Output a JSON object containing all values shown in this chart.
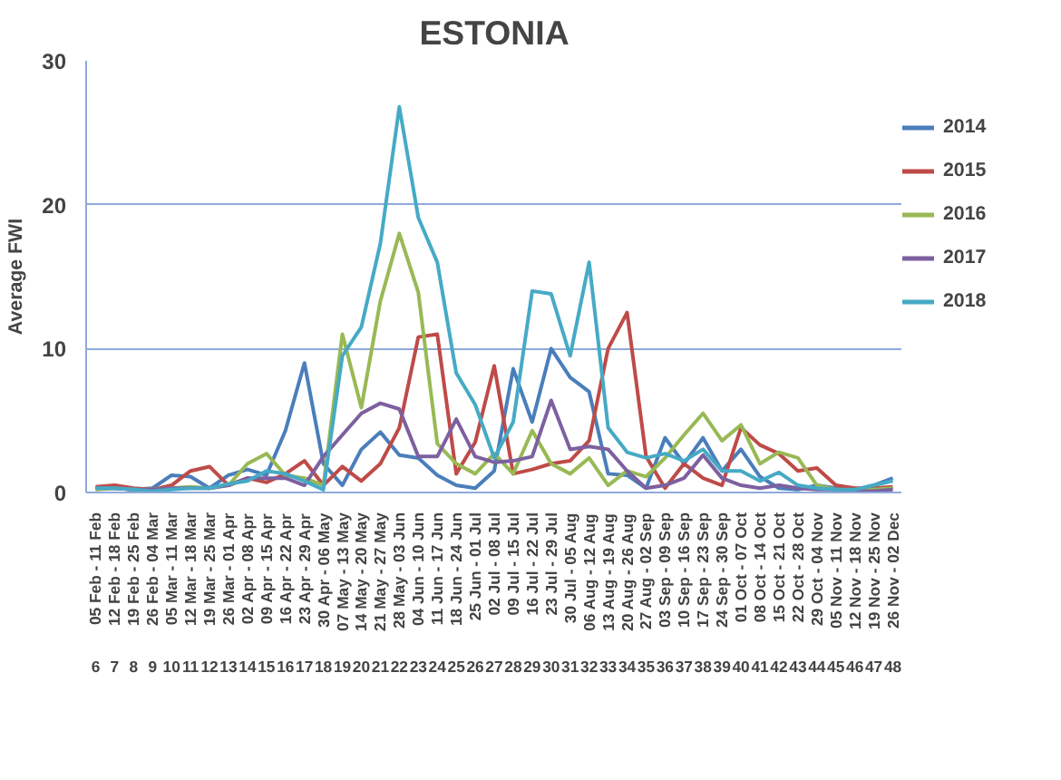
{
  "chart_data": {
    "type": "line",
    "title": "ESTONIA",
    "ylabel": "Average FWI",
    "categories": [
      "05 Feb - 11 Feb",
      "12 Feb - 18 Feb",
      "19 Feb - 25 Feb",
      "26 Feb - 04 Mar",
      "05 Mar - 11 Mar",
      "12 Mar - 18 Mar",
      "19 Mar - 25 Mar",
      "26 Mar - 01 Apr",
      "02 Apr - 08 Apr",
      "09 Apr - 15 Apr",
      "16 Apr - 22 Apr",
      "23 Apr - 29 Apr",
      "30 Apr - 06 May",
      "07 May - 13 May",
      "14 May - 20 May",
      "21 May - 27 May",
      "28 May - 03 Jun",
      "04 Jun - 10 Jun",
      "11 Jun - 17 Jun",
      "18 Jun - 24 Jun",
      "25 Jun - 01 Jul",
      "02 Jul - 08 Jul",
      "09 Jul - 15 Jul",
      "16 Jul - 22 Jul",
      "23 Jul - 29 Jul",
      "30 Jul - 05 Aug",
      "06 Aug - 12 Aug",
      "13 Aug - 19 Aug",
      "20 Aug - 26 Aug",
      "27 Aug - 02 Sep",
      "03 Sep - 09 Sep",
      "10 Sep - 16 Sep",
      "17 Sep - 23 Sep",
      "24 Sep - 30 Sep",
      "01 Oct - 07 Oct",
      "08 Oct - 14 Oct",
      "15 Oct - 21 Oct",
      "22 Oct - 28 Oct",
      "29 Oct - 04 Nov",
      "05 Nov - 11 Nov",
      "12 Nov - 18 Nov",
      "19 Nov - 25 Nov",
      "26 Nov - 02 Dec"
    ],
    "annotations": [
      "6",
      "7",
      "8",
      "9",
      "10",
      "11",
      "12",
      "13",
      "14",
      "15",
      "16",
      "17",
      "18",
      "19",
      "20",
      "21",
      "22",
      "23",
      "24",
      "25",
      "26",
      "27",
      "28",
      "29",
      "30",
      "31",
      "32",
      "33",
      "34",
      "35",
      "36",
      "37",
      "38",
      "39",
      "40",
      "41",
      "42",
      "43",
      "44",
      "45",
      "46",
      "47",
      "48"
    ],
    "series": [
      {
        "name": "2014",
        "color": "#4a7ebb",
        "values": [
          0.3,
          0.3,
          0.2,
          0.3,
          1.2,
          1.1,
          0.3,
          1.2,
          1.6,
          1.2,
          4.3,
          9,
          2,
          0.5,
          3,
          4.2,
          2.6,
          2.4,
          1.2,
          0.5,
          0.3,
          1.5,
          8.6,
          4.9,
          10,
          8,
          7,
          1.3,
          1.2,
          0.3,
          3.8,
          2,
          3.8,
          1.5,
          3,
          1.1,
          0.3,
          0.2,
          0.5,
          0.3,
          0.2,
          0.5,
          1
        ]
      },
      {
        "name": "2015",
        "color": "#be4b48",
        "values": [
          0.4,
          0.5,
          0.3,
          0.2,
          0.5,
          1.5,
          1.8,
          0.5,
          1,
          0.7,
          1.3,
          2.2,
          0.5,
          1.8,
          0.8,
          2,
          4.5,
          10.8,
          11,
          1.3,
          3.5,
          8.8,
          1.3,
          1.6,
          2,
          2.2,
          3.6,
          10,
          12.5,
          2.5,
          0.3,
          2,
          1,
          0.5,
          4.5,
          3.3,
          2.7,
          1.5,
          1.7,
          0.5,
          0.3,
          0.3,
          0.4
        ]
      },
      {
        "name": "2016",
        "color": "#98b954",
        "values": [
          0.2,
          0.3,
          0.2,
          0.2,
          0.3,
          0.4,
          0.3,
          0.5,
          2,
          2.7,
          1.2,
          1,
          0.5,
          11,
          5.9,
          13.3,
          18,
          13.9,
          3.4,
          2,
          1.3,
          2.7,
          1.3,
          4.3,
          2,
          1.3,
          2.4,
          0.5,
          1.5,
          1.1,
          2.4,
          4,
          5.5,
          3.6,
          4.7,
          2,
          2.8,
          2.4,
          0.5,
          0.2,
          0.1,
          0.2,
          0.3
        ]
      },
      {
        "name": "2017",
        "color": "#7d60a0",
        "values": [
          0.3,
          0.3,
          0.2,
          0.2,
          0.3,
          0.3,
          0.3,
          0.5,
          1,
          1,
          1,
          0.5,
          2.5,
          4,
          5.5,
          6.2,
          5.8,
          2.5,
          2.5,
          5.1,
          2.5,
          2.1,
          2.2,
          2.5,
          6.4,
          3,
          3.2,
          3,
          1.5,
          0.3,
          0.5,
          1,
          2.6,
          1,
          0.5,
          0.3,
          0.5,
          0.3,
          0.2,
          0.2,
          0.1,
          0.1,
          0.2
        ]
      },
      {
        "name": "2018",
        "color": "#46aac5",
        "values": [
          0.3,
          0.3,
          0.2,
          0.1,
          0.2,
          0.3,
          0.3,
          0.6,
          0.8,
          1.5,
          1.3,
          0.8,
          0.2,
          9.5,
          11.5,
          17.3,
          26.8,
          19.1,
          16,
          8.3,
          6.1,
          2.4,
          4.9,
          14,
          13.8,
          9.5,
          16,
          4.5,
          2.8,
          2.4,
          2.7,
          2.2,
          3,
          1.5,
          1.5,
          0.8,
          1.4,
          0.5,
          0.3,
          0.2,
          0.2,
          0.5,
          0.8
        ]
      }
    ],
    "ylim": [
      0,
      30
    ],
    "yticks": [
      0,
      10,
      20,
      30
    ],
    "grid": "y",
    "legend": "right"
  }
}
